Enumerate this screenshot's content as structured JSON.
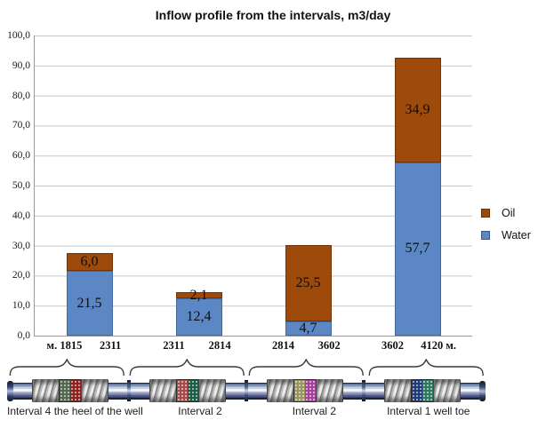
{
  "title": "Inflow profile from the intervals, m3/day",
  "chart_data": {
    "type": "bar",
    "stacked": true,
    "title": "Inflow profile from the intervals, m3/day",
    "xlabel": "",
    "ylabel": "",
    "ylim": [
      0,
      100
    ],
    "ytick_step": 10,
    "y_tick_labels": [
      "100,0",
      "90,0",
      "80,0",
      "70,0",
      "60,0",
      "50,0",
      "40,0",
      "30,0",
      "20,0",
      "10,0",
      "0,0"
    ],
    "grid": true,
    "legend_position": "right",
    "categories": [
      {
        "left": "м. 1815",
        "right": "2311"
      },
      {
        "left": "2311",
        "right": "2814"
      },
      {
        "left": "2814",
        "right": "3602"
      },
      {
        "left": "3602",
        "right": "4120 м."
      }
    ],
    "series": [
      {
        "name": "Water",
        "color": "#5B87C5",
        "border": "#44689E",
        "values": [
          21.5,
          12.4,
          4.7,
          57.7
        ],
        "labels": [
          "21,5",
          "12,4",
          "4,7",
          "57,7"
        ]
      },
      {
        "name": "Oil",
        "color": "#9D4A0B",
        "border": "#6F3408",
        "values": [
          6.0,
          2.1,
          25.5,
          34.9
        ],
        "labels": [
          "6,0",
          "2,1",
          "25,5",
          "34,9"
        ]
      }
    ]
  },
  "legend": {
    "items": [
      {
        "label": "Oil",
        "color": "#9D4A0B"
      },
      {
        "label": "Water",
        "color": "#5B87C5"
      }
    ]
  },
  "well_schematic": {
    "intervals": [
      {
        "label": "Interval 4 the heel of the well",
        "mesh_colors": [
          "#55664e",
          "#8e2020"
        ]
      },
      {
        "label": "Interval 2",
        "mesh_colors": [
          "#a84a4a",
          "#1d5c44"
        ]
      },
      {
        "label": "Interval 2",
        "mesh_colors": [
          "#97945c",
          "#a8409a"
        ]
      },
      {
        "label": "Interval 1 well toe",
        "mesh_colors": [
          "#1e3a78",
          "#2c7a5e"
        ]
      }
    ]
  }
}
